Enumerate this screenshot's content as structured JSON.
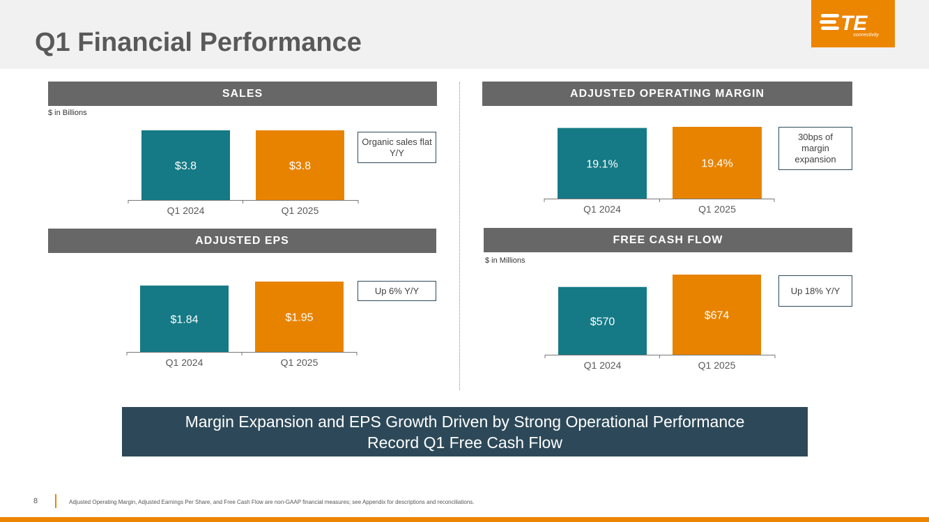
{
  "page": {
    "title": "Q1 Financial Performance",
    "logo": {
      "wordmark": "TE",
      "subtext": "connectivity"
    },
    "colors": {
      "teal": "#157a85",
      "orange": "#e88300",
      "header_gray": "#676767",
      "banner": "#2d4959",
      "accent": "#ec8500"
    },
    "banner": {
      "line1": "Margin Expansion and EPS Growth Driven by Strong Operational Performance",
      "line2": "Record Q1 Free Cash Flow"
    },
    "footer": {
      "page_number": "8",
      "footnote": "Adjusted Operating Margin, Adjusted Earnings Per Share, and Free Cash Flow are non-GAAP financial measures; see Appendix for descriptions and reconciliations."
    }
  },
  "chart_data": [
    {
      "type": "bar",
      "title": "SALES",
      "unit_note": "$ in Billions",
      "categories": [
        "Q1 2024",
        "Q1 2025"
      ],
      "values": [
        3.8,
        3.8
      ],
      "labels": [
        "$3.8",
        "$3.8"
      ],
      "callout": "Organic sales flat Y/Y",
      "ylim": [
        0,
        3.8
      ]
    },
    {
      "type": "bar",
      "title": "ADJUSTED OPERATING MARGIN",
      "unit_note": "",
      "categories": [
        "Q1 2024",
        "Q1 2025"
      ],
      "values": [
        19.1,
        19.4
      ],
      "labels": [
        "19.1%",
        "19.4%"
      ],
      "callout": "30bps of margin expansion",
      "ylim": [
        0,
        19.4
      ]
    },
    {
      "type": "bar",
      "title": "ADJUSTED EPS",
      "unit_note": "",
      "categories": [
        "Q1 2024",
        "Q1 2025"
      ],
      "values": [
        1.84,
        1.95
      ],
      "labels": [
        "$1.84",
        "$1.95"
      ],
      "callout": "Up 6% Y/Y",
      "ylim": [
        0,
        1.95
      ]
    },
    {
      "type": "bar",
      "title": "FREE CASH FLOW",
      "unit_note": "$ in Millions",
      "categories": [
        "Q1 2024",
        "Q1 2025"
      ],
      "values": [
        570,
        674
      ],
      "labels": [
        "$570",
        "$674"
      ],
      "callout": "Up 18% Y/Y",
      "ylim": [
        0,
        674
      ]
    }
  ]
}
